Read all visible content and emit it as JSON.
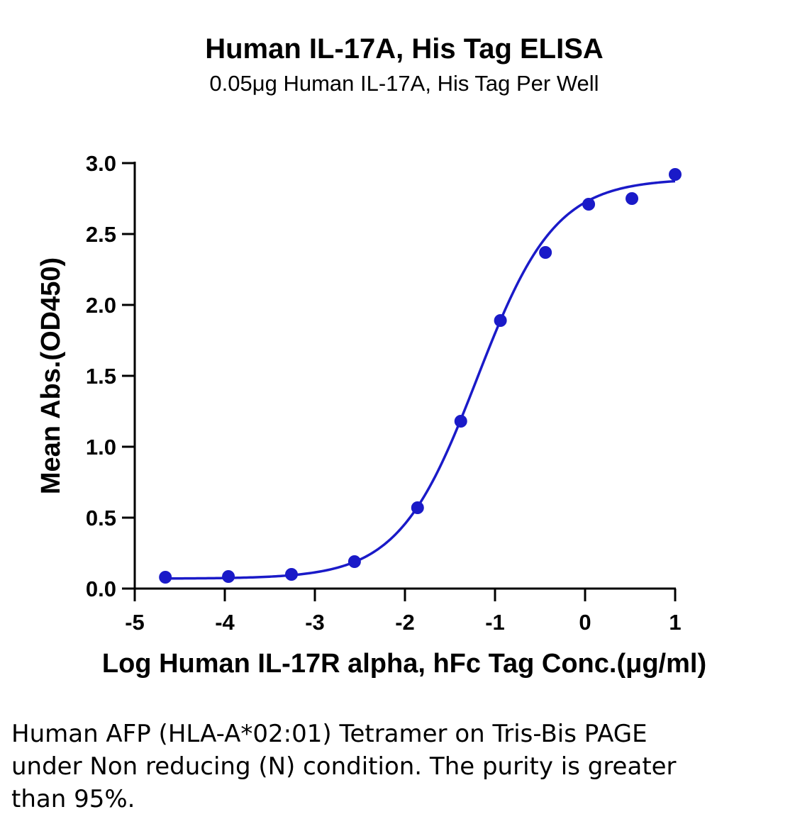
{
  "chart_data": {
    "type": "scatter",
    "title": "Human IL-17A, His Tag ELISA",
    "subtitle": "0.05μg Human IL-17A, His Tag Per Well",
    "xlabel": "Log Human IL-17R alpha, hFc Tag Conc.(μg/ml)",
    "ylabel": "Mean Abs.(OD450)",
    "xlim": [
      -5,
      1
    ],
    "ylim": [
      0,
      3.0
    ],
    "x_ticks": [
      -5,
      -4,
      -3,
      -2,
      -1,
      0,
      1
    ],
    "x_tick_labels": [
      "-5",
      "-4",
      "-3",
      "-2",
      "-1",
      "0",
      "1"
    ],
    "y_ticks": [
      0,
      0.5,
      1.0,
      1.5,
      2.0,
      2.5,
      3.0
    ],
    "y_tick_labels": [
      "0.0",
      "0.5",
      "1.0",
      "1.5",
      "2.0",
      "2.5",
      "3.0"
    ],
    "grid": false,
    "legend": "none",
    "series": [
      {
        "color": "#1a1ac8",
        "points": [
          {
            "x": -4.66,
            "y": 0.08
          },
          {
            "x": -3.96,
            "y": 0.085
          },
          {
            "x": -3.26,
            "y": 0.1
          },
          {
            "x": -2.56,
            "y": 0.19
          },
          {
            "x": -1.86,
            "y": 0.57
          },
          {
            "x": -1.38,
            "y": 1.18
          },
          {
            "x": -0.94,
            "y": 1.89
          },
          {
            "x": -0.44,
            "y": 2.37
          },
          {
            "x": 0.04,
            "y": 2.71
          },
          {
            "x": 0.52,
            "y": 2.75
          },
          {
            "x": 1.0,
            "y": 2.92
          }
        ],
        "fit_curve": {
          "model": "4PL",
          "bottom": 0.07,
          "top": 2.89,
          "log_ec50": -1.2,
          "hill_slope": 1.0,
          "x_range": [
            -4.66,
            1.0
          ]
        }
      }
    ]
  },
  "caption": "Human AFP (HLA-A*02:01) Tetramer on Tris-Bis PAGE under Non reducing (N) condition. The purity is greater than 95%."
}
